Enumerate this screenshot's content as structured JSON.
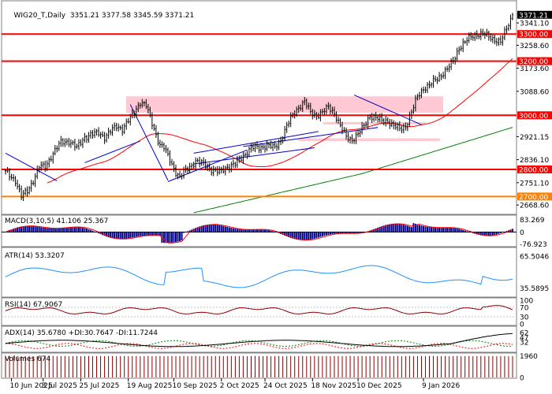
{
  "header": {
    "symbol": "WIG20_T,Daily",
    "ohlc": "3351.21 3377.58 3345.59 3371.21"
  },
  "chart_data": [
    {
      "type": "candlestick",
      "title": "WIG20_T,Daily",
      "ylim": [
        2640,
        3420
      ],
      "price_ticks": [
        "3341.10",
        "3258.60",
        "3173.60",
        "3088.60",
        "2921.15",
        "2836.10",
        "2751.10",
        "2668.60"
      ],
      "last_price": "3371.21",
      "levels": [
        {
          "value": 3300,
          "label": "3300.00",
          "color": "#ff0000"
        },
        {
          "value": 3200,
          "label": "3200.00",
          "color": "#ff0000"
        },
        {
          "value": 3000,
          "label": "3000.00",
          "color": "#ff0000"
        },
        {
          "value": 2800,
          "label": "2800.00",
          "color": "#ff0000"
        },
        {
          "value": 2700,
          "label": "2700.00",
          "color": "#ff8000"
        }
      ],
      "x_ticks": [
        "10 Jun 2025",
        "3 Jul 2025",
        "25 Jul 2025",
        "19 Aug 2025",
        "10 Sep 2025",
        "2 Oct 2025",
        "24 Oct 2025",
        "18 Nov 2025",
        "10 Dec 2025",
        "9 Jan 2026"
      ],
      "anchors": [
        [
          0,
          2790
        ],
        [
          5,
          2760
        ],
        [
          8,
          2700
        ],
        [
          11,
          2720
        ],
        [
          14,
          2760
        ],
        [
          17,
          2810
        ],
        [
          20,
          2810
        ],
        [
          24,
          2860
        ],
        [
          28,
          2900
        ],
        [
          32,
          2905
        ],
        [
          36,
          2880
        ],
        [
          40,
          2920
        ],
        [
          44,
          2930
        ],
        [
          47,
          2935
        ],
        [
          50,
          2920
        ],
        [
          53,
          2940
        ],
        [
          56,
          2960
        ],
        [
          59,
          2950
        ],
        [
          62,
          2980
        ],
        [
          65,
          3010
        ],
        [
          68,
          3050
        ],
        [
          71,
          3035
        ],
        [
          73,
          2990
        ],
        [
          76,
          2930
        ],
        [
          78,
          2890
        ],
        [
          80,
          2880
        ],
        [
          82,
          2850
        ],
        [
          84,
          2820
        ],
        [
          86,
          2790
        ],
        [
          88,
          2770
        ],
        [
          90,
          2790
        ],
        [
          93,
          2810
        ],
        [
          96,
          2830
        ],
        [
          100,
          2820
        ],
        [
          104,
          2800
        ],
        [
          108,
          2790
        ],
        [
          112,
          2810
        ],
        [
          116,
          2820
        ],
        [
          120,
          2850
        ],
        [
          124,
          2880
        ],
        [
          128,
          2880
        ],
        [
          132,
          2890
        ],
        [
          136,
          2880
        ],
        [
          139,
          2910
        ],
        [
          142,
          2960
        ],
        [
          145,
          3000
        ],
        [
          148,
          3030
        ],
        [
          151,
          3050
        ],
        [
          154,
          3010
        ],
        [
          157,
          3000
        ],
        [
          160,
          3010
        ],
        [
          163,
          3030
        ],
        [
          166,
          3010
        ],
        [
          169,
          2960
        ],
        [
          172,
          2920
        ],
        [
          175,
          2910
        ],
        [
          178,
          2930
        ],
        [
          181,
          2960
        ],
        [
          184,
          3000
        ],
        [
          187,
          2990
        ],
        [
          190,
          2980
        ],
        [
          193,
          2980
        ],
        [
          196,
          2960
        ],
        [
          199,
          2950
        ],
        [
          202,
          2960
        ],
        [
          205,
          3010
        ],
        [
          208,
          3070
        ],
        [
          211,
          3100
        ],
        [
          214,
          3110
        ],
        [
          217,
          3130
        ],
        [
          220,
          3150
        ],
        [
          223,
          3170
        ],
        [
          226,
          3200
        ],
        [
          229,
          3250
        ],
        [
          232,
          3270
        ],
        [
          235,
          3290
        ],
        [
          238,
          3300
        ],
        [
          241,
          3300
        ],
        [
          244,
          3290
        ],
        [
          247,
          3280
        ],
        [
          250,
          3270
        ],
        [
          253,
          3320
        ],
        [
          256,
          3371
        ]
      ],
      "moving_averages": [
        {
          "color": "#ff0000",
          "period": 50
        },
        {
          "color": "#008000",
          "period": 200
        }
      ],
      "support_zones": [
        {
          "y": [
            3010,
            3070
          ],
          "color": "#ffc0cb"
        },
        {
          "y": [
            2905,
            2915
          ],
          "color": "#ffc0cb"
        },
        {
          "y": [
            2970,
            2975
          ],
          "color": "#ffc0cb"
        }
      ],
      "trendlines_color": "#0000cd"
    },
    {
      "type": "line",
      "title": "MACD(3,10,5) 41.106 25.367",
      "ticks": [
        "83.269",
        "0",
        "-76.923"
      ],
      "series": [
        {
          "name": "MACD",
          "color": "#00008b",
          "style": "histogram"
        },
        {
          "name": "signal",
          "color": "#ff0000"
        }
      ]
    },
    {
      "type": "line",
      "title": "ATR(14) 53.3207",
      "ticks": [
        "65.5046",
        "35.5895"
      ],
      "series": [
        {
          "color": "#1e90ff"
        }
      ]
    },
    {
      "type": "line",
      "title": "RSI(14) 67.9067",
      "ticks": [
        "100",
        "70",
        "30",
        "0"
      ],
      "series": [
        {
          "color": "#8b0000"
        }
      ]
    },
    {
      "type": "line",
      "title": "ADX(14) 35.6780 +DI:30.7647 -DI:11.7244",
      "ticks": [
        "62",
        "47",
        "32"
      ],
      "series": [
        {
          "name": "ADX",
          "color": "#000000"
        },
        {
          "name": "+DI",
          "color": "#008000"
        },
        {
          "name": "-DI",
          "color": "#ff0000"
        }
      ]
    },
    {
      "type": "bar",
      "title": "Volumes 674",
      "ticks": [
        "1960",
        "0"
      ],
      "series": [
        {
          "color": "#8b0000"
        }
      ]
    }
  ]
}
